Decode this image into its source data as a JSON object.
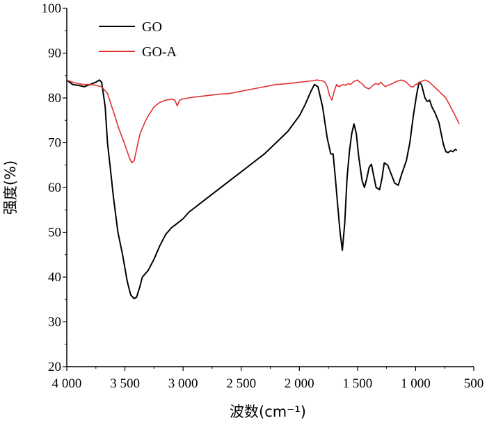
{
  "chart_data": {
    "type": "line",
    "xlabel": "波数(cm⁻¹)",
    "ylabel": "强度(%)",
    "xlim": [
      4000,
      500
    ],
    "ylim": [
      20,
      100
    ],
    "x_ticks": [
      4000,
      3500,
      3000,
      2500,
      2000,
      1500,
      1000,
      500
    ],
    "x_tick_labels": [
      "4 000",
      "3 500",
      "3 000",
      "2 500",
      "2 000",
      "1 500",
      "1 000",
      "500"
    ],
    "y_ticks": [
      20,
      30,
      40,
      50,
      60,
      70,
      80,
      90,
      100
    ],
    "y_tick_labels": [
      "20",
      "30",
      "40",
      "50",
      "60",
      "70",
      "80",
      "90",
      "100"
    ],
    "legend_position": "top-left",
    "series": [
      {
        "name": "GO",
        "color": "#000000",
        "points": [
          [
            4000,
            84.0
          ],
          [
            3950,
            83.0
          ],
          [
            3900,
            82.8
          ],
          [
            3850,
            82.5
          ],
          [
            3800,
            83.0
          ],
          [
            3750,
            83.5
          ],
          [
            3720,
            84.0
          ],
          [
            3700,
            83.5
          ],
          [
            3670,
            78
          ],
          [
            3650,
            70
          ],
          [
            3620,
            63
          ],
          [
            3600,
            58
          ],
          [
            3560,
            50
          ],
          [
            3520,
            45
          ],
          [
            3480,
            39
          ],
          [
            3450,
            36
          ],
          [
            3420,
            35.2
          ],
          [
            3400,
            35.5
          ],
          [
            3370,
            38
          ],
          [
            3350,
            40
          ],
          [
            3300,
            41.5
          ],
          [
            3250,
            44
          ],
          [
            3200,
            47
          ],
          [
            3150,
            49.5
          ],
          [
            3100,
            51
          ],
          [
            3050,
            52
          ],
          [
            3000,
            53
          ],
          [
            2950,
            54.5
          ],
          [
            2900,
            55.5
          ],
          [
            2800,
            57.5
          ],
          [
            2700,
            59.5
          ],
          [
            2600,
            61.5
          ],
          [
            2500,
            63.5
          ],
          [
            2400,
            65.5
          ],
          [
            2300,
            67.5
          ],
          [
            2200,
            70
          ],
          [
            2100,
            72.5
          ],
          [
            2000,
            76
          ],
          [
            1950,
            78.5
          ],
          [
            1900,
            81.5
          ],
          [
            1870,
            83.0
          ],
          [
            1840,
            82.5
          ],
          [
            1800,
            78
          ],
          [
            1760,
            71
          ],
          [
            1730,
            67.5
          ],
          [
            1710,
            67.5
          ],
          [
            1690,
            62
          ],
          [
            1670,
            56
          ],
          [
            1650,
            50
          ],
          [
            1630,
            46
          ],
          [
            1610,
            52
          ],
          [
            1590,
            62
          ],
          [
            1570,
            68
          ],
          [
            1550,
            72
          ],
          [
            1530,
            74.2
          ],
          [
            1510,
            72
          ],
          [
            1490,
            67
          ],
          [
            1460,
            61.5
          ],
          [
            1440,
            60
          ],
          [
            1420,
            62
          ],
          [
            1400,
            64.5
          ],
          [
            1380,
            65.2
          ],
          [
            1360,
            62.5
          ],
          [
            1340,
            60
          ],
          [
            1310,
            59.5
          ],
          [
            1290,
            62
          ],
          [
            1270,
            65.5
          ],
          [
            1240,
            65
          ],
          [
            1210,
            63
          ],
          [
            1180,
            61
          ],
          [
            1150,
            60.5
          ],
          [
            1120,
            63
          ],
          [
            1080,
            66
          ],
          [
            1050,
            70
          ],
          [
            1020,
            76
          ],
          [
            990,
            81
          ],
          [
            970,
            83.5
          ],
          [
            950,
            83
          ],
          [
            920,
            80
          ],
          [
            900,
            79.2
          ],
          [
            880,
            79.5
          ],
          [
            860,
            78
          ],
          [
            830,
            76.5
          ],
          [
            800,
            74.5
          ],
          [
            780,
            72
          ],
          [
            760,
            69.5
          ],
          [
            740,
            68
          ],
          [
            720,
            67.8
          ],
          [
            700,
            68.2
          ],
          [
            680,
            68
          ],
          [
            660,
            68.5
          ],
          [
            645,
            68.3
          ]
        ]
      },
      {
        "name": "GO-A",
        "color": "#e03030",
        "points": [
          [
            4000,
            84.0
          ],
          [
            3950,
            83.5
          ],
          [
            3900,
            83.2
          ],
          [
            3850,
            83.0
          ],
          [
            3800,
            83.0
          ],
          [
            3750,
            82.8
          ],
          [
            3700,
            82.5
          ],
          [
            3650,
            81
          ],
          [
            3600,
            77
          ],
          [
            3550,
            73
          ],
          [
            3500,
            69.5
          ],
          [
            3460,
            66.5
          ],
          [
            3440,
            65.5
          ],
          [
            3420,
            66
          ],
          [
            3400,
            68.5
          ],
          [
            3370,
            72
          ],
          [
            3330,
            74.5
          ],
          [
            3300,
            76
          ],
          [
            3250,
            78
          ],
          [
            3200,
            79
          ],
          [
            3150,
            79.5
          ],
          [
            3100,
            79.7
          ],
          [
            3070,
            79.5
          ],
          [
            3050,
            78.2
          ],
          [
            3030,
            79.5
          ],
          [
            3000,
            79.8
          ],
          [
            2950,
            80.0
          ],
          [
            2900,
            80.2
          ],
          [
            2800,
            80.5
          ],
          [
            2700,
            80.8
          ],
          [
            2600,
            81.0
          ],
          [
            2500,
            81.5
          ],
          [
            2400,
            82.0
          ],
          [
            2300,
            82.5
          ],
          [
            2200,
            83.0
          ],
          [
            2100,
            83.2
          ],
          [
            2000,
            83.5
          ],
          [
            1900,
            83.8
          ],
          [
            1850,
            84.0
          ],
          [
            1800,
            83.8
          ],
          [
            1780,
            83.5
          ],
          [
            1760,
            82.5
          ],
          [
            1740,
            80.5
          ],
          [
            1720,
            79.5
          ],
          [
            1700,
            81.5
          ],
          [
            1680,
            83
          ],
          [
            1660,
            82.5
          ],
          [
            1640,
            82.8
          ],
          [
            1620,
            83.0
          ],
          [
            1600,
            82.8
          ],
          [
            1580,
            83.2
          ],
          [
            1560,
            83.0
          ],
          [
            1540,
            83.5
          ],
          [
            1520,
            83.8
          ],
          [
            1500,
            84.0
          ],
          [
            1480,
            83.5
          ],
          [
            1460,
            83.2
          ],
          [
            1440,
            82.5
          ],
          [
            1420,
            82.2
          ],
          [
            1400,
            82.0
          ],
          [
            1380,
            82.5
          ],
          [
            1360,
            83.0
          ],
          [
            1340,
            83.2
          ],
          [
            1320,
            83.0
          ],
          [
            1300,
            83.5
          ],
          [
            1280,
            83.0
          ],
          [
            1260,
            82.5
          ],
          [
            1240,
            82.8
          ],
          [
            1220,
            83.0
          ],
          [
            1200,
            83.2
          ],
          [
            1180,
            83.5
          ],
          [
            1150,
            83.8
          ],
          [
            1120,
            84.0
          ],
          [
            1100,
            83.8
          ],
          [
            1080,
            83.5
          ],
          [
            1060,
            83.0
          ],
          [
            1040,
            82.5
          ],
          [
            1020,
            82.5
          ],
          [
            1000,
            83.0
          ],
          [
            980,
            83.2
          ],
          [
            960,
            83.5
          ],
          [
            940,
            83.8
          ],
          [
            920,
            84.0
          ],
          [
            900,
            83.8
          ],
          [
            880,
            83.5
          ],
          [
            860,
            83.0
          ],
          [
            840,
            82.5
          ],
          [
            820,
            82.0
          ],
          [
            800,
            81.5
          ],
          [
            780,
            81.0
          ],
          [
            760,
            80.5
          ],
          [
            740,
            80.0
          ],
          [
            720,
            79.0
          ],
          [
            700,
            78.0
          ],
          [
            680,
            77.0
          ],
          [
            660,
            76.0
          ],
          [
            640,
            75.0
          ],
          [
            625,
            74.2
          ]
        ]
      }
    ]
  }
}
